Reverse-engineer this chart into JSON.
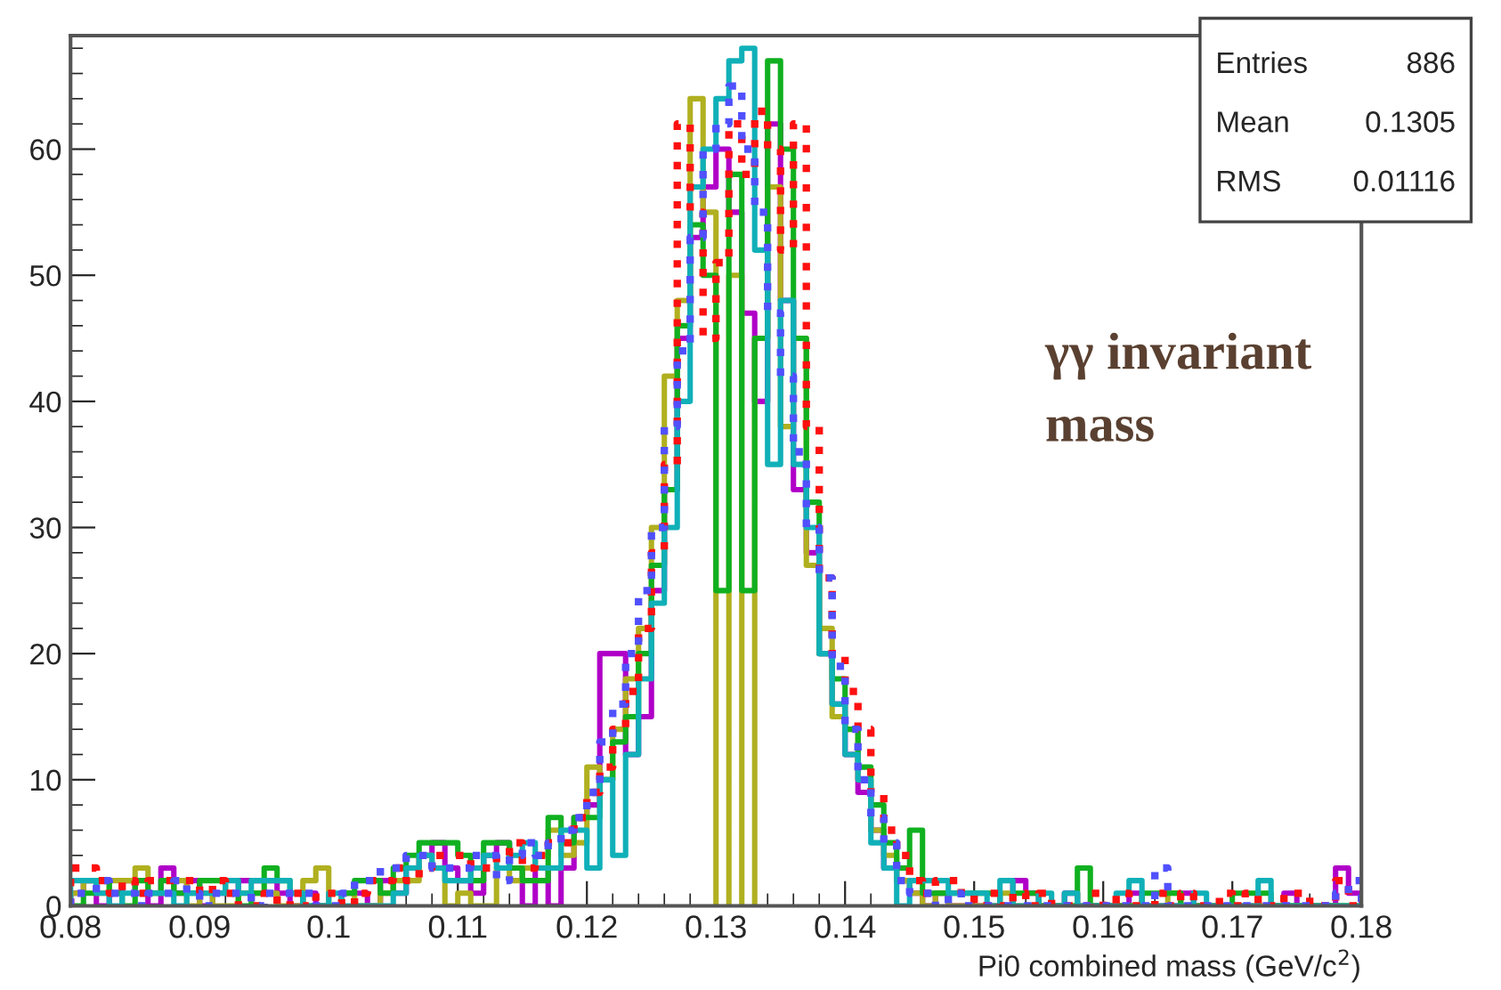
{
  "chart_data": {
    "type": "histogram",
    "xlabel": "Pi0 combined mass (GeV/c$^{2}$)",
    "annotations": [
      "Entries",
      "886",
      "Mean",
      "0.1305",
      "RMS",
      "0.01116",
      "γγ invariant mass"
    ],
    "bins": [
      0.08,
      0.081,
      0.082,
      0.083,
      0.084,
      0.085,
      0.086,
      0.087,
      0.088,
      0.089,
      0.09,
      0.091,
      0.092,
      0.093,
      0.094,
      0.095,
      0.096,
      0.097,
      0.098,
      0.099,
      0.1,
      0.101,
      0.102,
      0.103,
      0.104,
      0.105,
      0.106,
      0.107,
      0.108,
      0.109,
      0.11,
      0.111,
      0.112,
      0.113,
      0.114,
      0.115,
      0.116,
      0.117,
      0.118,
      0.119,
      0.12,
      0.121,
      0.122,
      0.123,
      0.124,
      0.125,
      0.126,
      0.127,
      0.128,
      0.129,
      0.13,
      0.131,
      0.132,
      0.133,
      0.134,
      0.135,
      0.136,
      0.137,
      0.138,
      0.139,
      0.14,
      0.141,
      0.142,
      0.143,
      0.144,
      0.145,
      0.146,
      0.147,
      0.148,
      0.149,
      0.15,
      0.151,
      0.152,
      0.153,
      0.154,
      0.155,
      0.156,
      0.157,
      0.158,
      0.159,
      0.16,
      0.161,
      0.162,
      0.163,
      0.164,
      0.165,
      0.166,
      0.167,
      0.168,
      0.169,
      0.17,
      0.171,
      0.172,
      0.173,
      0.174,
      0.175,
      0.176,
      0.177,
      0.178,
      0.179,
      0.18
    ],
    "series": [
      {
        "color": "#b000c8",
        "line_style": "solid",
        "values": [
          1,
          2,
          0,
          1,
          2,
          1,
          0,
          3,
          1,
          2,
          0,
          1,
          1,
          2,
          2,
          2,
          1,
          0,
          1,
          0,
          0,
          1,
          1,
          0,
          2,
          1,
          3,
          4,
          5,
          3,
          2,
          1,
          4,
          5,
          3,
          0,
          3,
          0,
          3,
          7,
          8,
          20,
          20,
          12,
          15,
          25,
          33,
          45,
          53,
          57,
          60,
          55,
          47,
          40,
          62,
          48,
          33,
          28,
          20,
          16,
          12,
          9,
          6,
          3,
          2,
          1,
          0,
          1,
          0,
          0,
          0,
          0,
          0,
          2,
          1,
          0,
          0,
          1,
          0,
          0,
          0,
          0,
          1,
          0,
          0,
          0,
          1,
          0,
          0,
          0,
          0,
          0,
          0,
          0,
          1,
          0,
          0,
          0,
          3,
          1
        ]
      },
      {
        "color": "#b0b020",
        "line_style": "solid",
        "values": [
          1,
          2,
          1,
          2,
          2,
          3,
          1,
          1,
          2,
          0,
          1,
          0,
          0,
          1,
          1,
          1,
          0,
          0,
          2,
          3,
          0,
          1,
          0,
          0,
          1,
          2,
          2,
          4,
          3,
          0,
          1,
          0,
          0,
          3,
          2,
          3,
          4,
          6,
          4,
          5,
          11,
          10,
          14,
          18,
          22,
          30,
          42,
          48,
          64,
          55,
          null,
          50,
          null,
          45,
          57,
          38,
          45,
          27,
          22,
          15,
          14,
          10,
          6,
          4,
          2,
          1,
          0,
          1,
          0,
          0,
          0,
          0,
          1,
          0,
          0,
          0,
          0,
          0,
          0,
          0,
          0,
          0,
          0,
          0,
          0,
          1,
          0,
          0,
          0,
          0,
          0,
          0,
          0,
          0,
          0,
          0,
          0,
          0,
          0,
          0
        ]
      },
      {
        "color": "#10b020",
        "line_style": "solid",
        "values": [
          0,
          1,
          2,
          1,
          0,
          2,
          1,
          2,
          1,
          1,
          2,
          2,
          1,
          0,
          1,
          3,
          2,
          1,
          0,
          0,
          0,
          1,
          2,
          2,
          1,
          3,
          4,
          5,
          5,
          5,
          4,
          2,
          5,
          5,
          3,
          2,
          2,
          7,
          5,
          7,
          7,
          10,
          13,
          15,
          20,
          27,
          33,
          46,
          54,
          50,
          25,
          58,
          25,
          45,
          67,
          60,
          45,
          32,
          20,
          18,
          14,
          11,
          8,
          5,
          3,
          6,
          1,
          1,
          1,
          1,
          1,
          1,
          0,
          1,
          1,
          0,
          0,
          0,
          3,
          0,
          0,
          0,
          0,
          1,
          1,
          1,
          0,
          0,
          0,
          0,
          1,
          1,
          1,
          0,
          0,
          0,
          0,
          0,
          0,
          0
        ]
      },
      {
        "color": "#10b0b8",
        "line_style": "solid",
        "values": [
          2,
          2,
          1,
          0,
          1,
          1,
          1,
          1,
          0,
          1,
          1,
          1,
          2,
          1,
          2,
          2,
          2,
          1,
          0,
          0,
          1,
          0,
          0,
          0,
          0,
          1,
          3,
          4,
          3,
          2,
          2,
          3,
          4,
          3,
          4,
          5,
          3,
          3,
          6,
          6,
          3,
          10,
          4,
          12,
          18,
          24,
          30,
          40,
          57,
          60,
          64,
          67,
          68,
          52,
          35,
          48,
          35,
          30,
          20,
          16,
          12,
          10,
          5,
          3,
          0,
          2,
          2,
          2,
          1,
          1,
          1,
          0,
          2,
          0,
          0,
          1,
          0,
          1,
          0,
          0,
          0,
          1,
          2,
          0,
          0,
          0,
          0,
          1,
          0,
          0,
          0,
          0,
          2,
          0,
          0,
          0,
          0,
          0,
          0,
          0
        ]
      },
      {
        "color": "#ff1010",
        "line_style": "dotted",
        "values": [
          3,
          3,
          2,
          1,
          2,
          1,
          2,
          2,
          2,
          2,
          1,
          2,
          1,
          0,
          0,
          1,
          0,
          1,
          0,
          1,
          1,
          0,
          1,
          2,
          2,
          3,
          2,
          3,
          4,
          4,
          4,
          3,
          3,
          4,
          5,
          3,
          4,
          5,
          5,
          7,
          9,
          11,
          14,
          17,
          22,
          28,
          35,
          62,
          55,
          45,
          51,
          62,
          58,
          63,
          60,
          52,
          62,
          38,
          26,
          20,
          17,
          14,
          9,
          6,
          4,
          2,
          1,
          2,
          2,
          1,
          0,
          1,
          0,
          1,
          0,
          1,
          0,
          0,
          0,
          1,
          0,
          1,
          0,
          0,
          1,
          0,
          1,
          0,
          0,
          1,
          0,
          1,
          0,
          0,
          1,
          1,
          0,
          0,
          2,
          0
        ]
      },
      {
        "color": "#5050ff",
        "line_style": "dotted",
        "values": [
          1,
          1,
          2,
          1,
          1,
          0,
          1,
          1,
          2,
          1,
          0,
          1,
          1,
          1,
          0,
          1,
          1,
          1,
          1,
          0,
          0,
          1,
          2,
          2,
          3,
          3,
          4,
          4,
          3,
          3,
          3,
          4,
          4,
          2,
          4,
          5,
          4,
          5,
          6,
          7,
          9,
          13,
          16,
          20,
          25,
          30,
          38,
          44,
          53,
          60,
          62,
          65,
          60,
          55,
          47,
          42,
          36,
          30,
          26,
          19,
          14,
          10,
          7,
          5,
          2,
          1,
          1,
          0,
          1,
          0,
          0,
          0,
          0,
          0,
          0,
          0,
          0,
          0,
          0,
          0,
          0,
          0,
          0,
          0,
          3,
          0,
          0,
          0,
          0,
          0,
          0,
          0,
          0,
          0,
          0,
          0,
          0,
          0,
          1,
          2
        ]
      }
    ],
    "xlim": [
      0.08,
      0.18
    ],
    "ylim": [
      0,
      69
    ],
    "xticks": [
      0.08,
      0.09,
      0.1,
      0.11,
      0.12,
      0.13,
      0.14,
      0.15,
      0.16,
      0.17,
      0.18
    ],
    "yticks": [
      0,
      10,
      20,
      30,
      40,
      50,
      60
    ],
    "grid": false
  }
}
